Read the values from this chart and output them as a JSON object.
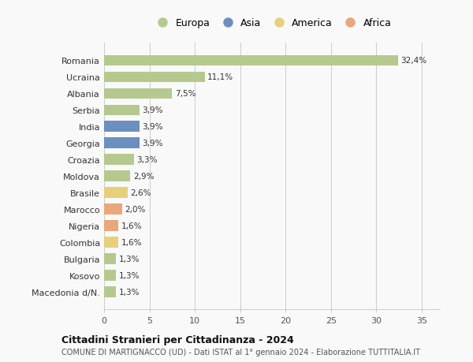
{
  "countries": [
    "Romania",
    "Ucraina",
    "Albania",
    "Serbia",
    "India",
    "Georgia",
    "Croazia",
    "Moldova",
    "Brasile",
    "Marocco",
    "Nigeria",
    "Colombia",
    "Bulgaria",
    "Kosovo",
    "Macedonia d/N."
  ],
  "values": [
    32.4,
    11.1,
    7.5,
    3.9,
    3.9,
    3.9,
    3.3,
    2.9,
    2.6,
    2.0,
    1.6,
    1.6,
    1.3,
    1.3,
    1.3
  ],
  "labels": [
    "32,4%",
    "11,1%",
    "7,5%",
    "3,9%",
    "3,9%",
    "3,9%",
    "3,3%",
    "2,9%",
    "2,6%",
    "2,0%",
    "1,6%",
    "1,6%",
    "1,3%",
    "1,3%",
    "1,3%"
  ],
  "colors": [
    "#b5c98e",
    "#b5c98e",
    "#b5c98e",
    "#b5c98e",
    "#6b8fbf",
    "#6b8fbf",
    "#b5c98e",
    "#b5c98e",
    "#e8d07a",
    "#e8a87a",
    "#e8a87a",
    "#e8d07a",
    "#b5c98e",
    "#b5c98e",
    "#b5c98e"
  ],
  "continent_colors": {
    "Europa": "#b5c98e",
    "Asia": "#6b8fbf",
    "America": "#e8d07a",
    "Africa": "#e8a87a"
  },
  "title1": "Cittadini Stranieri per Cittadinanza - 2024",
  "title2": "COMUNE DI MARTIGNACCO (UD) - Dati ISTAT al 1° gennaio 2024 - Elaborazione TUTTITALIA.IT",
  "xlim": [
    0,
    37
  ],
  "xticks": [
    0,
    5,
    10,
    15,
    20,
    25,
    30,
    35
  ],
  "background_color": "#f9f9f9",
  "grid_color": "#cccccc"
}
